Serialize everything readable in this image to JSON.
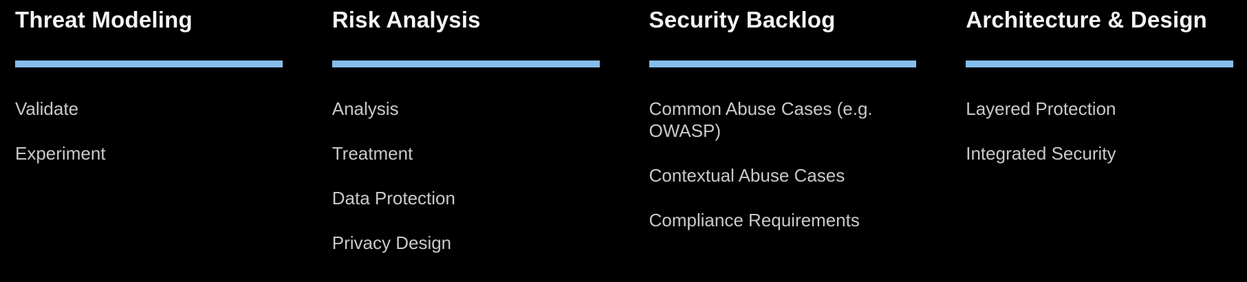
{
  "theme": {
    "background": "#000000",
    "accent_bar": "#85bdeb",
    "heading_color": "#f4f4f4",
    "item_color": "#c9c9c9"
  },
  "columns": [
    {
      "title": "Threat Modeling",
      "items": [
        "Validate",
        "Experiment"
      ]
    },
    {
      "title": "Risk Analysis",
      "items": [
        "Analysis",
        "Treatment",
        "Data Protection",
        "Privacy Design"
      ]
    },
    {
      "title": "Security Backlog",
      "items": [
        "Common Abuse Cases (e.g. OWASP)",
        "Contextual Abuse Cases",
        "Compliance Requirements"
      ]
    },
    {
      "title": "Architecture & Design",
      "items": [
        "Layered Protection",
        "Integrated Security"
      ]
    }
  ]
}
